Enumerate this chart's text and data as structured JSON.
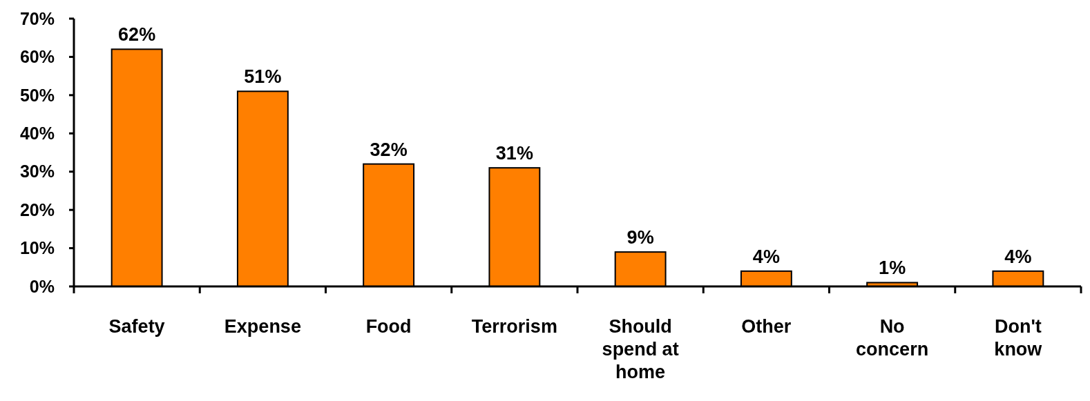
{
  "chart_data": {
    "type": "bar",
    "categories": [
      "Safety",
      "Expense",
      "Food",
      "Terrorism",
      "Should spend at home",
      "Other",
      "No concern",
      "Don't know"
    ],
    "values": [
      62,
      51,
      32,
      31,
      9,
      4,
      1,
      4
    ],
    "value_labels": [
      "62%",
      "51%",
      "32%",
      "31%",
      "9%",
      "4%",
      "1%",
      "4%"
    ],
    "color": "#ff7f00",
    "ylim": [
      0,
      70
    ],
    "yticks": [
      {
        "value": 0,
        "label": "0%"
      },
      {
        "value": 10,
        "label": "10%"
      },
      {
        "value": 20,
        "label": "20%"
      },
      {
        "value": 30,
        "label": "30%"
      },
      {
        "value": 40,
        "label": "40%"
      },
      {
        "value": 50,
        "label": "50%"
      },
      {
        "value": 60,
        "label": "60%"
      },
      {
        "value": 70,
        "label": "70%"
      }
    ],
    "grid": false
  }
}
